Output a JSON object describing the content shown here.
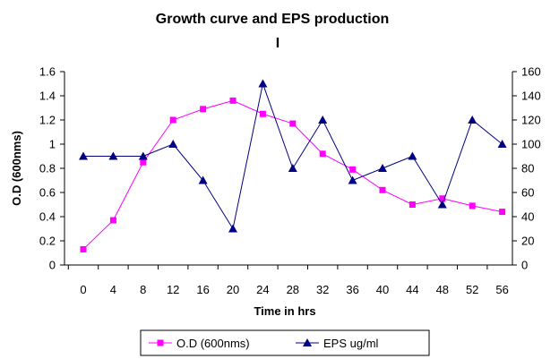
{
  "chart_data": {
    "type": "line",
    "title": "Growth curve and EPS production",
    "subtitle": "I",
    "xlabel": "Time in hrs",
    "ylabel": "O.D (600nms)",
    "y2label": "",
    "x": [
      0,
      4,
      8,
      12,
      16,
      20,
      24,
      28,
      32,
      36,
      40,
      44,
      48,
      52,
      56
    ],
    "x_tick_labels": [
      "0",
      "4",
      "8",
      "12",
      "16",
      "20",
      "24",
      "28",
      "32",
      "36",
      "40",
      "44",
      "48",
      "52",
      "56"
    ],
    "ylim": [
      0,
      1.6
    ],
    "y_ticks": [
      "0",
      "0.2",
      "0.4",
      "0.6",
      "0.8",
      "1",
      "1.2",
      "1.4",
      "1.6"
    ],
    "y2lim": [
      0,
      160
    ],
    "y2_ticks": [
      "0",
      "20",
      "40",
      "60",
      "80",
      "100",
      "120",
      "140",
      "160"
    ],
    "grid": false,
    "legend": "bottom",
    "series": [
      {
        "name": "O.D (600nms)",
        "axis": "left",
        "color": "#ff00ff",
        "marker": "square",
        "values": [
          0.13,
          0.37,
          0.85,
          1.2,
          1.29,
          1.36,
          1.25,
          1.17,
          0.92,
          0.79,
          0.62,
          0.5,
          0.55,
          0.49,
          0.44
        ]
      },
      {
        "name": "EPS ug/ml",
        "axis": "right",
        "color": "#000080",
        "marker": "triangle",
        "values": [
          90,
          90,
          90,
          100,
          70,
          30,
          150,
          80,
          120,
          70,
          80,
          90,
          50,
          120,
          100
        ]
      }
    ]
  }
}
